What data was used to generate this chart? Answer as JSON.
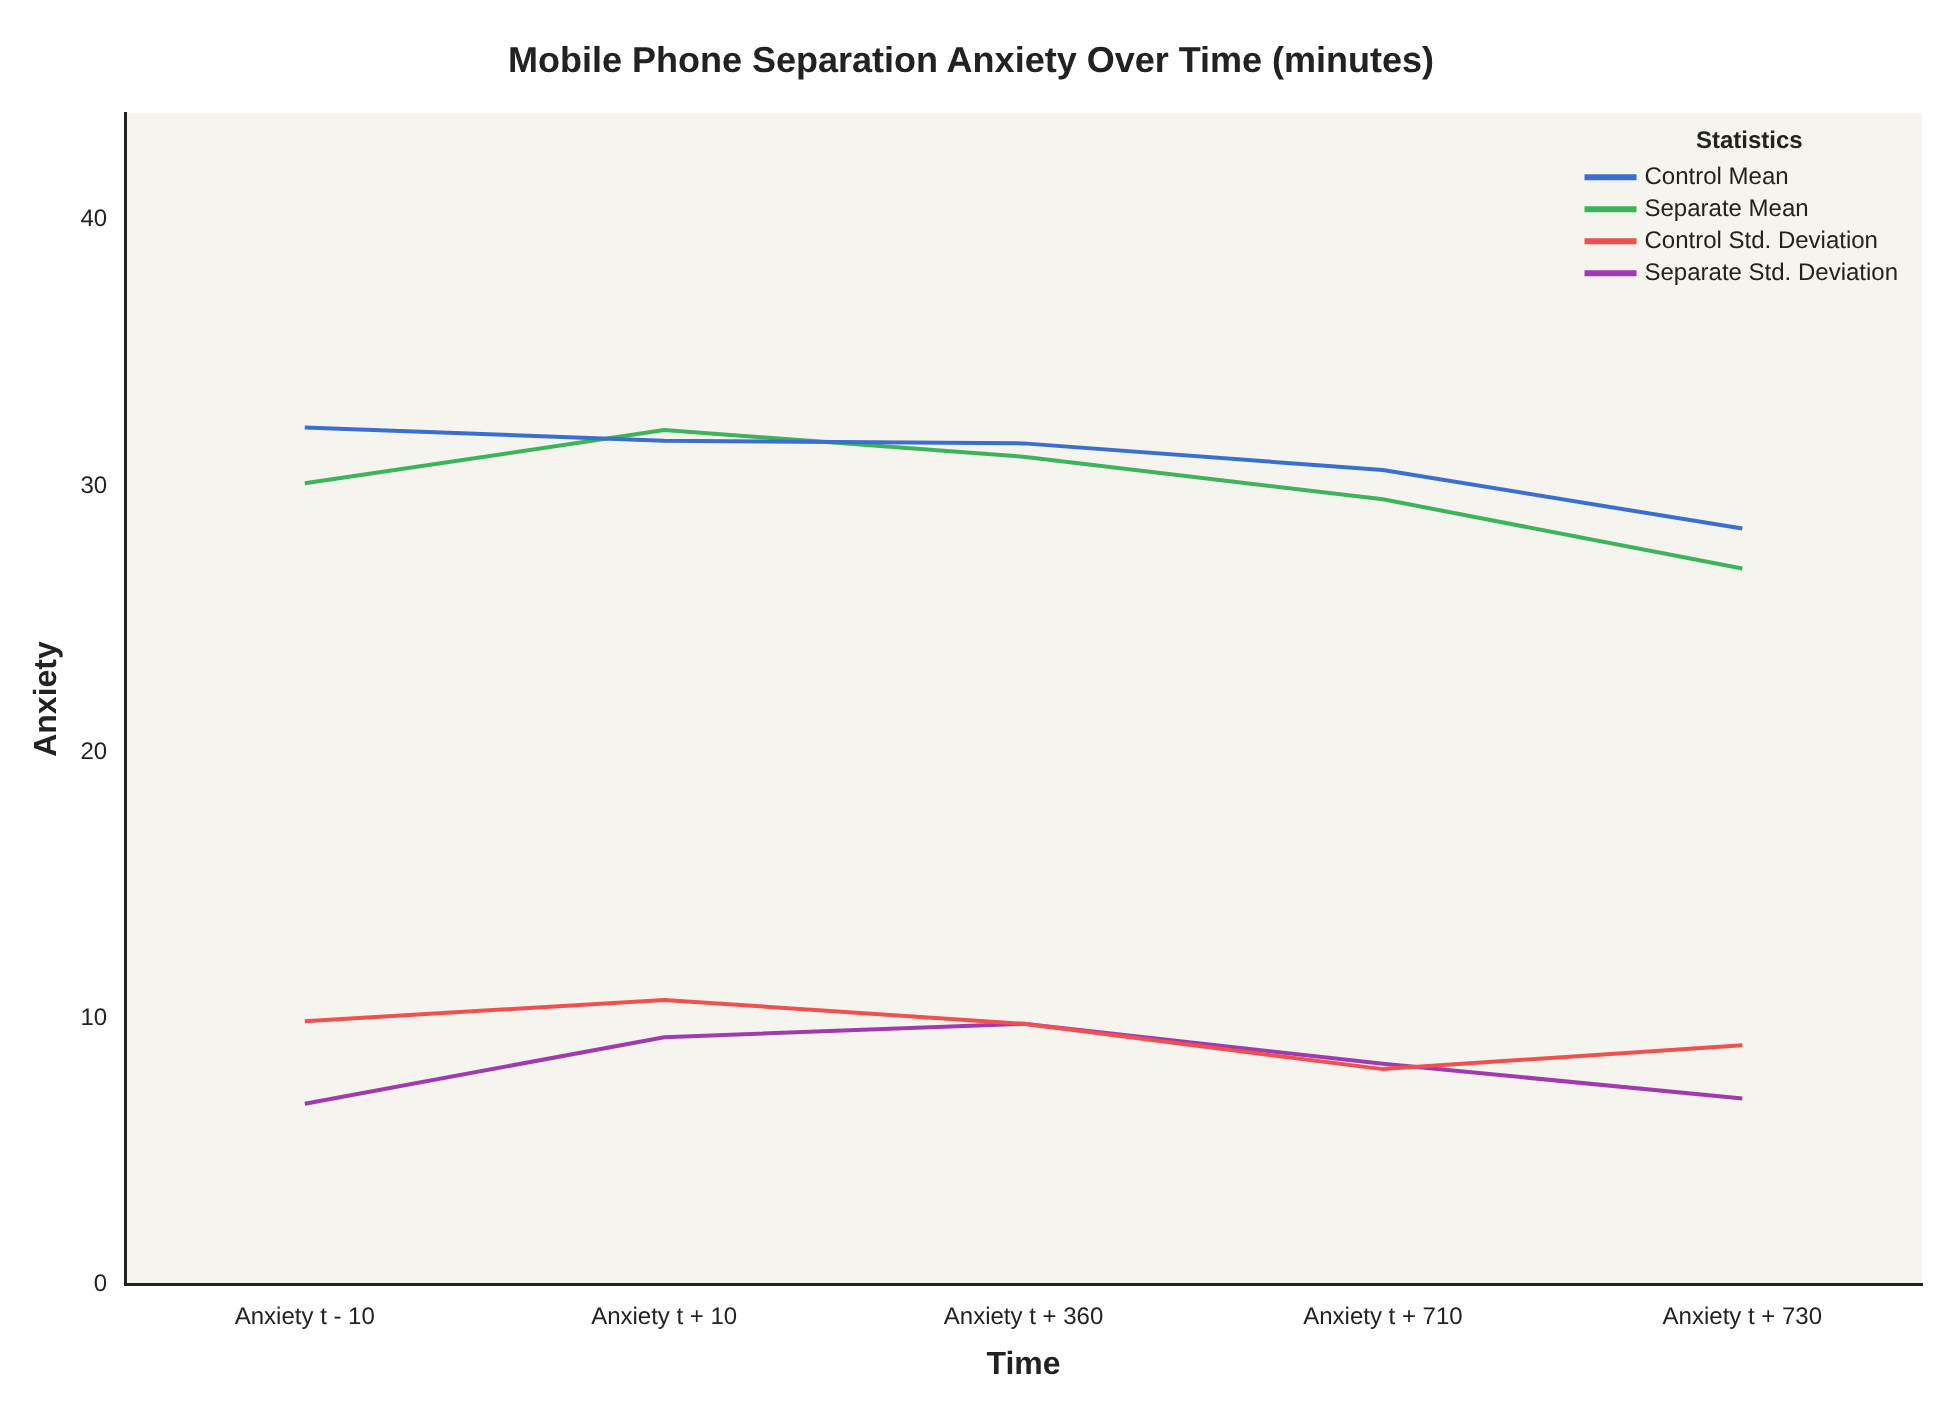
{
  "chart_data": {
    "type": "line",
    "title": "Mobile Phone Separation Anxiety Over Time (minutes)",
    "xlabel": "Time",
    "ylabel": "Anxiety",
    "legend_title": "Statistics",
    "legend": "top right",
    "grid": false,
    "marker": "none",
    "categories": [
      "Anxiety t - 10",
      "Anxiety t + 10",
      "Anxiety t + 360",
      "Anxiety t + 710",
      "Anxiety t + 730"
    ],
    "ylim": [
      0,
      44
    ],
    "yticks": [
      0,
      10,
      20,
      30,
      40
    ],
    "series": [
      {
        "name": "Control Mean",
        "color": "#3a6fd0",
        "values": [
          32.2,
          31.7,
          31.6,
          30.6,
          28.4
        ]
      },
      {
        "name": "Separate Mean",
        "color": "#3cb45a",
        "values": [
          30.1,
          32.1,
          31.1,
          29.5,
          26.9
        ]
      },
      {
        "name": "Control Std. Deviation",
        "color": "#f05050",
        "values": [
          9.9,
          10.7,
          9.8,
          8.1,
          9.0
        ]
      },
      {
        "name": "Separate Std. Deviation",
        "color": "#a03ab0",
        "values": [
          6.8,
          9.3,
          9.8,
          8.3,
          7.0
        ]
      }
    ]
  }
}
